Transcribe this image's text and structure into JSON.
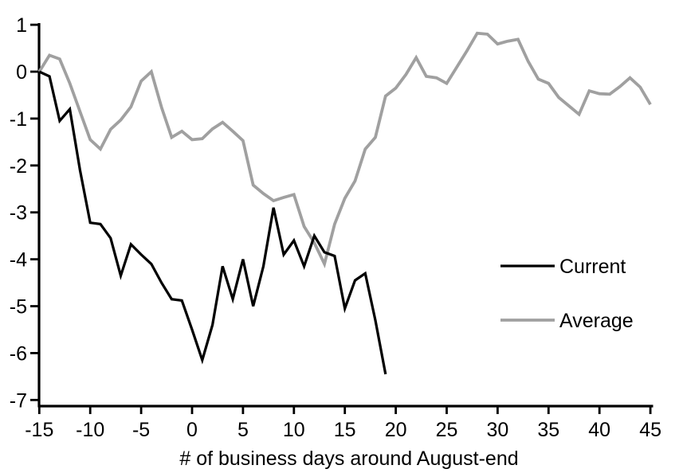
{
  "chart_data": {
    "type": "line",
    "title": "",
    "xlabel": "# of business days around August-end",
    "ylabel": "",
    "xlim": [
      -15,
      45
    ],
    "ylim": [
      -7,
      1
    ],
    "x_ticks": [
      -15,
      -10,
      -5,
      0,
      5,
      10,
      15,
      20,
      25,
      30,
      35,
      40,
      45
    ],
    "y_ticks": [
      1,
      0,
      -1,
      -2,
      -3,
      -4,
      -5,
      -6,
      -7
    ],
    "grid": false,
    "legend_position": "middle-right",
    "axis_color": "#000000",
    "series": [
      {
        "name": "Average",
        "color": "#a0a0a0",
        "width": 3.8,
        "x": [
          -15,
          -14,
          -13,
          -12,
          -11,
          -10,
          -9,
          -8,
          -7,
          -6,
          -5,
          -4,
          -3,
          -2,
          -1,
          0,
          1,
          2,
          3,
          4,
          5,
          6,
          7,
          8,
          9,
          10,
          11,
          12,
          13,
          14,
          15,
          16,
          17,
          18,
          19,
          20,
          21,
          22,
          23,
          24,
          25,
          26,
          27,
          28,
          29,
          30,
          31,
          32,
          33,
          34,
          35,
          36,
          37,
          38,
          39,
          40,
          41,
          42,
          43,
          44,
          45
        ],
        "values": [
          0,
          0.35,
          0.27,
          -0.25,
          -0.85,
          -1.45,
          -1.65,
          -1.23,
          -1.03,
          -0.75,
          -0.2,
          0,
          -0.76,
          -1.4,
          -1.27,
          -1.45,
          -1.43,
          -1.22,
          -1.08,
          -1.27,
          -1.47,
          -2.42,
          -2.6,
          -2.75,
          -2.68,
          -2.62,
          -3.3,
          -3.65,
          -4.1,
          -3.25,
          -2.7,
          -2.33,
          -1.65,
          -1.4,
          -0.52,
          -0.35,
          -0.06,
          0.3,
          -0.1,
          -0.13,
          -0.25,
          0.1,
          0.45,
          0.82,
          0.8,
          0.59,
          0.65,
          0.69,
          0.22,
          -0.16,
          -0.25,
          -0.55,
          -0.73,
          -0.91,
          -0.41,
          -0.47,
          -0.48,
          -0.32,
          -0.13,
          -0.33,
          -0.7
        ]
      },
      {
        "name": "Current",
        "color": "#000000",
        "width": 3.25,
        "x": [
          -15,
          -14,
          -13,
          -12,
          -11,
          -10,
          -9,
          -8,
          -7,
          -6,
          -5,
          -4,
          -3,
          -2,
          -1,
          0,
          1,
          2,
          3,
          4,
          5,
          6,
          7,
          8,
          9,
          10,
          11,
          12,
          13,
          14,
          15,
          16,
          17,
          18,
          19
        ],
        "values": [
          0,
          -0.1,
          -1.05,
          -0.8,
          -2.1,
          -3.22,
          -3.25,
          -3.55,
          -4.35,
          -3.68,
          -3.9,
          -4.1,
          -4.5,
          -4.85,
          -4.88,
          -5.5,
          -6.15,
          -5.4,
          -4.15,
          -4.85,
          -4.0,
          -5.0,
          -4.15,
          -2.9,
          -3.9,
          -3.6,
          -4.15,
          -3.5,
          -3.85,
          -3.93,
          -5.05,
          -4.45,
          -4.3,
          -5.3,
          -6.45
        ]
      }
    ]
  },
  "legend": {
    "current_label": "Current",
    "average_label": "Average"
  }
}
